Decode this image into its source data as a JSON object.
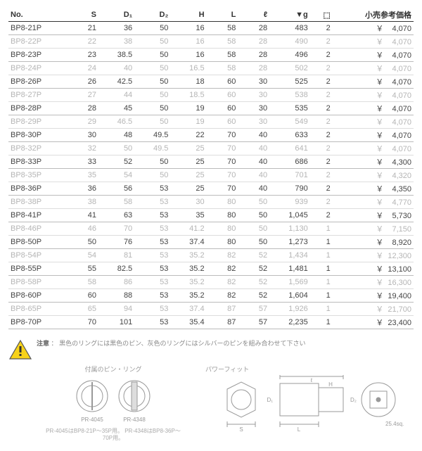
{
  "headers": [
    "No.",
    "S",
    "D₁",
    "D₂",
    "H",
    "L",
    "ℓ",
    "▼g",
    "⬚",
    "小売参考価格"
  ],
  "rows": [
    {
      "no": "BP8-21P",
      "s": "21",
      "d1": "36",
      "d2": "50",
      "h": "16",
      "L": "58",
      "l": "28",
      "g": "483",
      "q": "2",
      "price": "4,070",
      "light": false
    },
    {
      "no": "BP8-22P",
      "s": "22",
      "d1": "38",
      "d2": "50",
      "h": "16",
      "L": "58",
      "l": "28",
      "g": "490",
      "q": "2",
      "price": "4,070",
      "light": true
    },
    {
      "no": "BP8-23P",
      "s": "23",
      "d1": "38.5",
      "d2": "50",
      "h": "16",
      "L": "58",
      "l": "28",
      "g": "496",
      "q": "2",
      "price": "4,070",
      "light": false
    },
    {
      "no": "BP8-24P",
      "s": "24",
      "d1": "40",
      "d2": "50",
      "h": "16.5",
      "L": "58",
      "l": "28",
      "g": "502",
      "q": "2",
      "price": "4,070",
      "light": true
    },
    {
      "no": "BP8-26P",
      "s": "26",
      "d1": "42.5",
      "d2": "50",
      "h": "18",
      "L": "60",
      "l": "30",
      "g": "525",
      "q": "2",
      "price": "4,070",
      "light": false
    },
    {
      "no": "BP8-27P",
      "s": "27",
      "d1": "44",
      "d2": "50",
      "h": "18.5",
      "L": "60",
      "l": "30",
      "g": "538",
      "q": "2",
      "price": "4,070",
      "light": true
    },
    {
      "no": "BP8-28P",
      "s": "28",
      "d1": "45",
      "d2": "50",
      "h": "19",
      "L": "60",
      "l": "30",
      "g": "535",
      "q": "2",
      "price": "4,070",
      "light": false
    },
    {
      "no": "BP8-29P",
      "s": "29",
      "d1": "46.5",
      "d2": "50",
      "h": "19",
      "L": "60",
      "l": "30",
      "g": "549",
      "q": "2",
      "price": "4,070",
      "light": true
    },
    {
      "no": "BP8-30P",
      "s": "30",
      "d1": "48",
      "d2": "49.5",
      "h": "22",
      "L": "70",
      "l": "40",
      "g": "633",
      "q": "2",
      "price": "4,070",
      "light": false
    },
    {
      "no": "BP8-32P",
      "s": "32",
      "d1": "50",
      "d2": "49.5",
      "h": "25",
      "L": "70",
      "l": "40",
      "g": "641",
      "q": "2",
      "price": "4,070",
      "light": true
    },
    {
      "no": "BP8-33P",
      "s": "33",
      "d1": "52",
      "d2": "50",
      "h": "25",
      "L": "70",
      "l": "40",
      "g": "686",
      "q": "2",
      "price": "4,300",
      "light": false
    },
    {
      "no": "BP8-35P",
      "s": "35",
      "d1": "54",
      "d2": "50",
      "h": "25",
      "L": "70",
      "l": "40",
      "g": "701",
      "q": "2",
      "price": "4,320",
      "light": true
    },
    {
      "no": "BP8-36P",
      "s": "36",
      "d1": "56",
      "d2": "53",
      "h": "25",
      "L": "70",
      "l": "40",
      "g": "790",
      "q": "2",
      "price": "4,350",
      "light": false
    },
    {
      "no": "BP8-38P",
      "s": "38",
      "d1": "58",
      "d2": "53",
      "h": "30",
      "L": "80",
      "l": "50",
      "g": "939",
      "q": "2",
      "price": "4,770",
      "light": true
    },
    {
      "no": "BP8-41P",
      "s": "41",
      "d1": "63",
      "d2": "53",
      "h": "35",
      "L": "80",
      "l": "50",
      "g": "1,045",
      "q": "2",
      "price": "5,730",
      "light": false
    },
    {
      "no": "BP8-46P",
      "s": "46",
      "d1": "70",
      "d2": "53",
      "h": "41.2",
      "L": "80",
      "l": "50",
      "g": "1,130",
      "q": "1",
      "price": "7,150",
      "light": true
    },
    {
      "no": "BP8-50P",
      "s": "50",
      "d1": "76",
      "d2": "53",
      "h": "37.4",
      "L": "80",
      "l": "50",
      "g": "1,273",
      "q": "1",
      "price": "8,920",
      "light": false
    },
    {
      "no": "BP8-54P",
      "s": "54",
      "d1": "81",
      "d2": "53",
      "h": "35.2",
      "L": "82",
      "l": "52",
      "g": "1,434",
      "q": "1",
      "price": "12,300",
      "light": true
    },
    {
      "no": "BP8-55P",
      "s": "55",
      "d1": "82.5",
      "d2": "53",
      "h": "35.2",
      "L": "82",
      "l": "52",
      "g": "1,481",
      "q": "1",
      "price": "13,100",
      "light": false
    },
    {
      "no": "BP8-58P",
      "s": "58",
      "d1": "86",
      "d2": "53",
      "h": "35.2",
      "L": "82",
      "l": "52",
      "g": "1,569",
      "q": "1",
      "price": "16,300",
      "light": true
    },
    {
      "no": "BP8-60P",
      "s": "60",
      "d1": "88",
      "d2": "53",
      "h": "35.2",
      "L": "82",
      "l": "52",
      "g": "1,604",
      "q": "1",
      "price": "19,400",
      "light": false
    },
    {
      "no": "BP8-65P",
      "s": "65",
      "d1": "94",
      "d2": "53",
      "h": "37.4",
      "L": "87",
      "l": "57",
      "g": "1,926",
      "q": "1",
      "price": "21,700",
      "light": true
    },
    {
      "no": "BP8-70P",
      "s": "70",
      "d1": "101",
      "d2": "53",
      "h": "35.4",
      "L": "87",
      "l": "57",
      "g": "2,235",
      "q": "1",
      "price": "23,400",
      "light": false
    }
  ],
  "currency": "￥",
  "note": {
    "title": "注意",
    "body": "黒色のリングには黒色のピン、灰色のリングにはシルバーのピンを組み合わせて下さい"
  },
  "diagrams": {
    "rings": {
      "label": "付属のピン・リング",
      "left": "PR-4045",
      "right": "PR-4348",
      "sub": "PR-4045はBP8-21P～35P用。\nPR-4348はBP8-36P～70P用。"
    },
    "socket": {
      "label": "パワーフィット",
      "ann": {
        "d1": "D₁",
        "d2": "D₂",
        "s": "S",
        "l": "ℓ",
        "L": "L",
        "H": "H",
        "sq": "25.4sq."
      }
    }
  }
}
